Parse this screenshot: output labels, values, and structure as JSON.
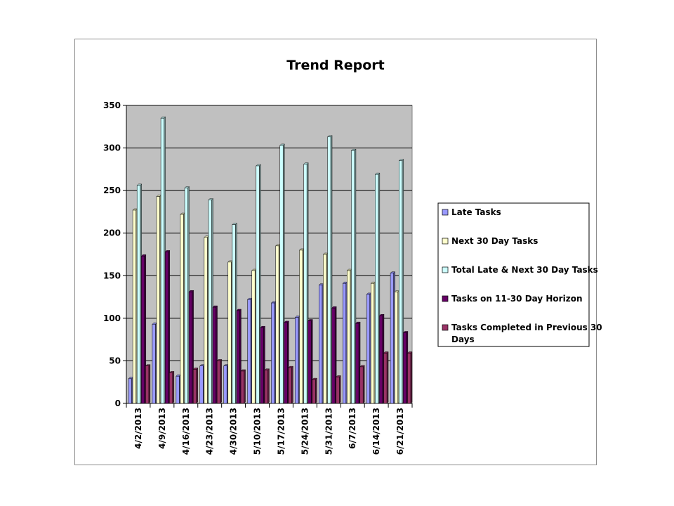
{
  "chart_data": {
    "type": "bar",
    "title": "Trend Report",
    "xlabel": "",
    "ylabel": "",
    "ylim": [
      0,
      350
    ],
    "yticks": [
      0,
      50,
      100,
      150,
      200,
      250,
      300,
      350
    ],
    "grid": true,
    "legend_position": "right",
    "categories": [
      "4/2/2013",
      "4/9/2013",
      "4/16/2013",
      "4/23/2013",
      "4/30/2013",
      "5/10/2013",
      "5/17/2013",
      "5/24/2013",
      "5/31/2013",
      "6/7/2013",
      "6/14/2013",
      "6/21/2013"
    ],
    "series": [
      {
        "name": "Late Tasks",
        "color": "#9999ff",
        "values": [
          29,
          93,
          32,
          44,
          44,
          122,
          118,
          101,
          139,
          141,
          128,
          153
        ]
      },
      {
        "name": "Next 30 Day Tasks",
        "color": "#ffffcc",
        "values": [
          227,
          243,
          222,
          195,
          166,
          156,
          185,
          180,
          175,
          156,
          141,
          131
        ]
      },
      {
        "name": "Total Late & Next 30 Day Tasks",
        "color": "#ccffff",
        "values": [
          256,
          335,
          253,
          239,
          210,
          279,
          303,
          281,
          313,
          297,
          269,
          285
        ]
      },
      {
        "name": "Tasks on 11-30 Day Horizon",
        "color": "#660066",
        "values": [
          173,
          178,
          131,
          113,
          109,
          89,
          95,
          97,
          112,
          94,
          103,
          83
        ]
      },
      {
        "name": "Tasks Completed in Previous 30 Days",
        "color": "#993366",
        "values": [
          44,
          36,
          40,
          50,
          38,
          39,
          42,
          28,
          31,
          43,
          59,
          59
        ]
      }
    ],
    "plot_background": "#c0c0c0"
  }
}
